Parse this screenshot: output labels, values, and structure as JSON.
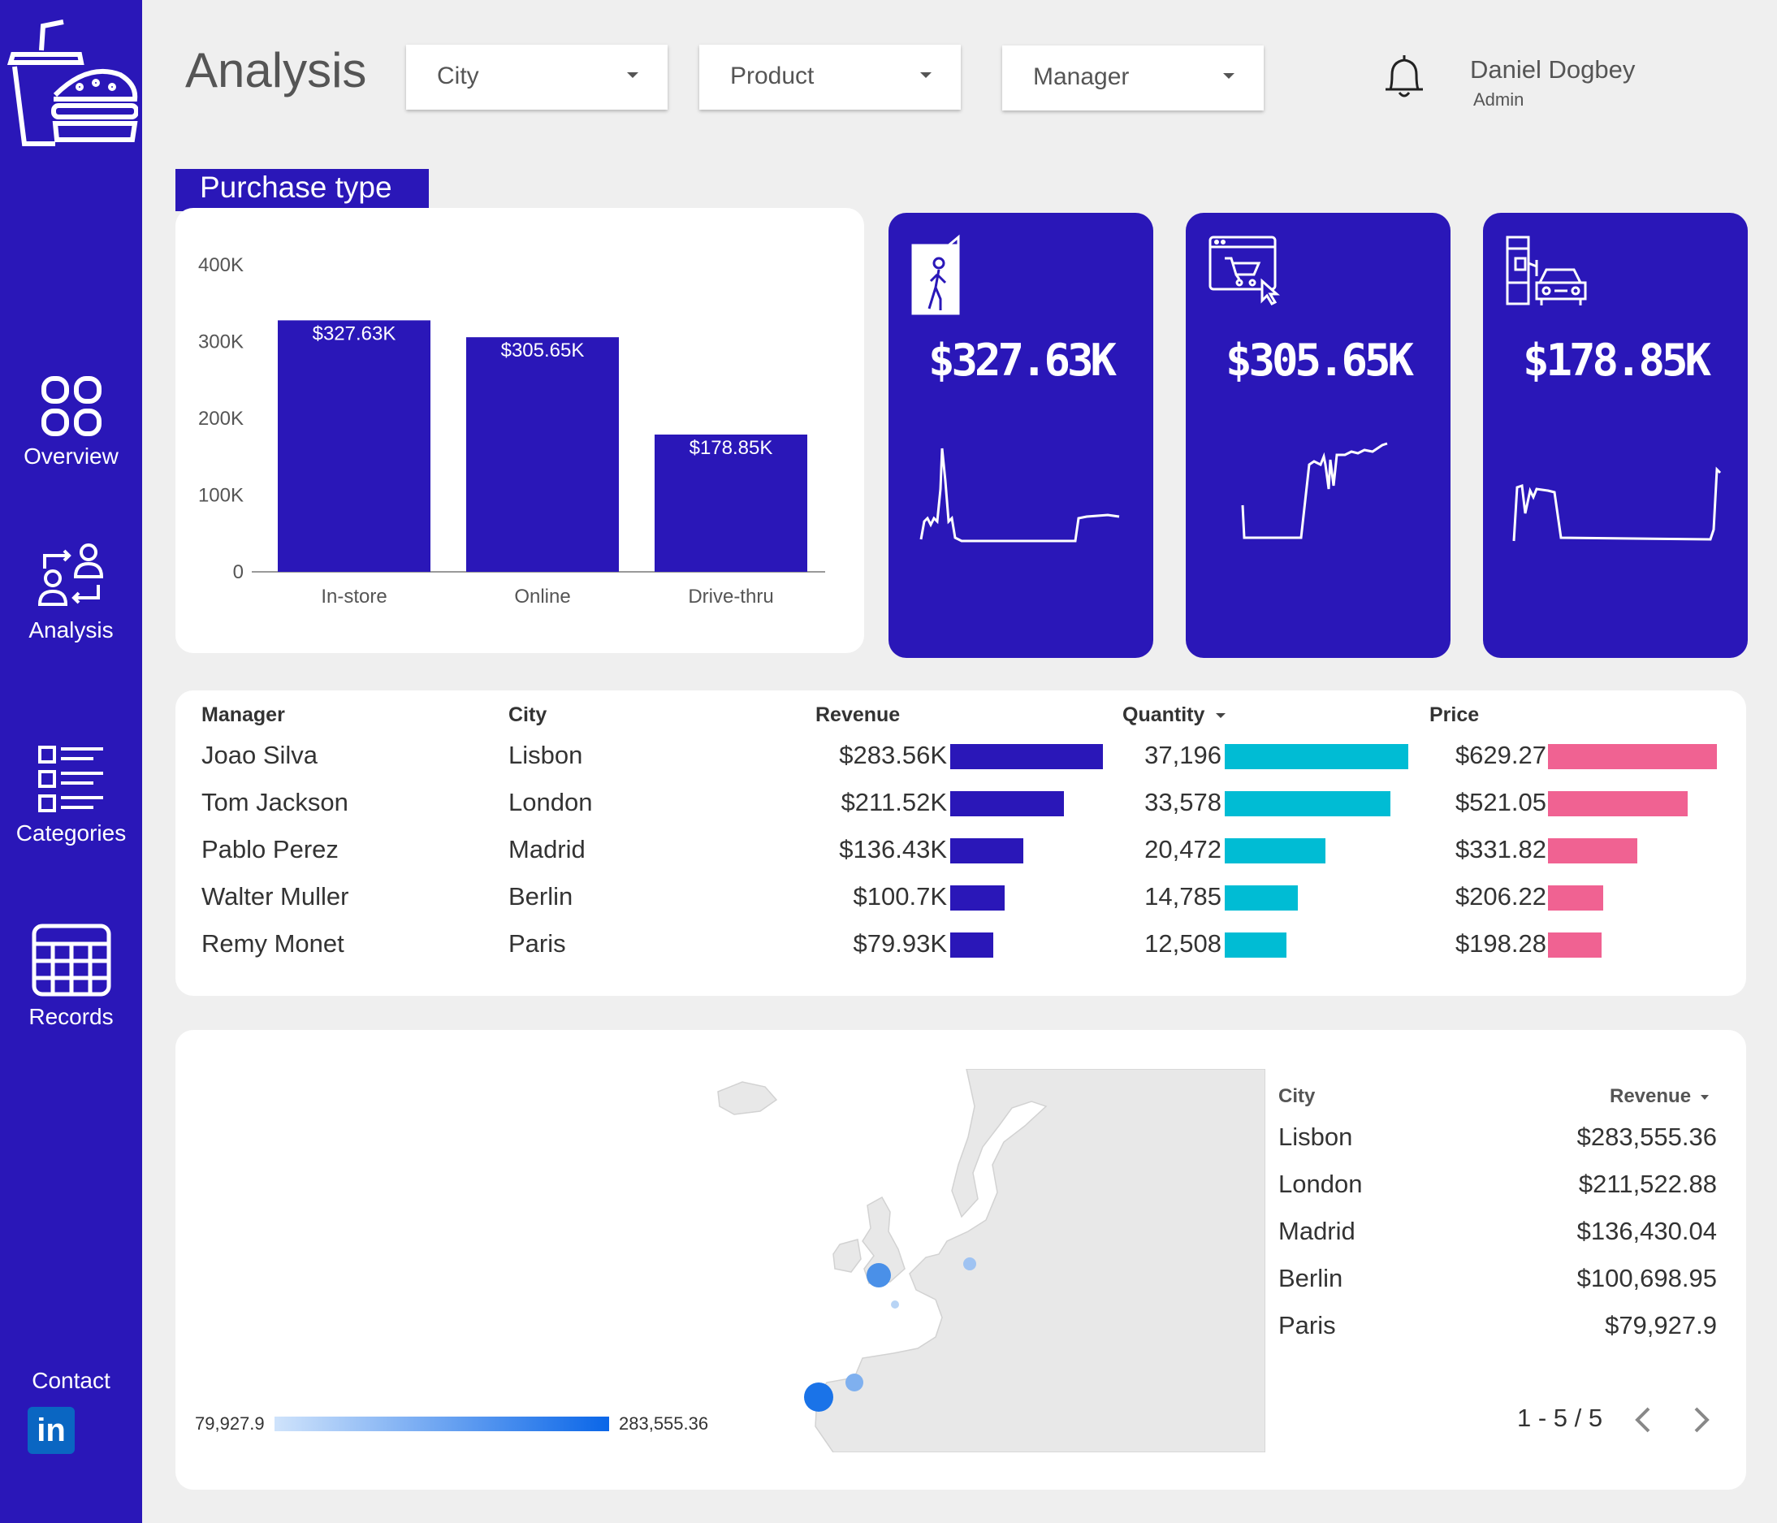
{
  "page_title": "Analysis",
  "filters": [
    {
      "label": "City"
    },
    {
      "label": "Product"
    },
    {
      "label": "Manager"
    }
  ],
  "user": {
    "name": "Daniel Dogbey",
    "role": "Admin"
  },
  "sidebar": {
    "items": [
      {
        "label": "Overview",
        "icon": "overview-icon"
      },
      {
        "label": "Analysis",
        "icon": "analysis-icon"
      },
      {
        "label": "Categories",
        "icon": "categories-icon"
      },
      {
        "label": "Records",
        "icon": "records-icon"
      }
    ],
    "contact_label": "Contact",
    "linkedin_label": "in"
  },
  "purchase_type": {
    "title": "Purchase type",
    "chart_data": {
      "type": "bar",
      "categories": [
        "In-store",
        "Online",
        "Drive-thru"
      ],
      "values": [
        327.63,
        305.65,
        178.85
      ],
      "data_labels": [
        "$327.63K",
        "$305.65K",
        "$178.85K"
      ],
      "yticks": [
        "0",
        "100K",
        "200K",
        "300K",
        "400K"
      ],
      "ylim": [
        0,
        400
      ],
      "grid": false
    }
  },
  "kpis": [
    {
      "value": "$327.63K",
      "icon": "door-person-icon"
    },
    {
      "value": "$305.65K",
      "icon": "online-cart-icon"
    },
    {
      "value": "$178.85K",
      "icon": "drive-thru-icon"
    }
  ],
  "manager_table": {
    "headers": {
      "manager": "Manager",
      "city": "City",
      "revenue": "Revenue",
      "quantity": "Quantity",
      "price": "Price"
    },
    "rows": [
      {
        "manager": "Joao Silva",
        "city": "Lisbon",
        "revenue": "$283.56K",
        "quantity": "37,196",
        "price": "$629.27",
        "rev_v": 283.56,
        "qty_v": 37196,
        "price_v": 629.27
      },
      {
        "manager": "Tom Jackson",
        "city": "London",
        "revenue": "$211.52K",
        "quantity": "33,578",
        "price": "$521.05",
        "rev_v": 211.52,
        "qty_v": 33578,
        "price_v": 521.05
      },
      {
        "manager": "Pablo Perez",
        "city": "Madrid",
        "revenue": "$136.43K",
        "quantity": "20,472",
        "price": "$331.82",
        "rev_v": 136.43,
        "qty_v": 20472,
        "price_v": 331.82
      },
      {
        "manager": "Walter Muller",
        "city": "Berlin",
        "revenue": "$100.7K",
        "quantity": "14,785",
        "price": "$206.22",
        "rev_v": 100.7,
        "qty_v": 14785,
        "price_v": 206.22
      },
      {
        "manager": "Remy Monet",
        "city": "Paris",
        "revenue": "$79.93K",
        "quantity": "12,508",
        "price": "$198.28",
        "rev_v": 79.93,
        "qty_v": 12508,
        "price_v": 198.28
      }
    ],
    "colors": {
      "revenue": "#2a17b8",
      "quantity": "#00bcd4",
      "price": "#f06292"
    }
  },
  "map": {
    "legend_min": "79,927.9",
    "legend_max": "283,555.36"
  },
  "city_table": {
    "headers": {
      "city": "City",
      "revenue": "Revenue"
    },
    "rows": [
      {
        "city": "Lisbon",
        "revenue": "$283,555.36"
      },
      {
        "city": "London",
        "revenue": "$211,522.88"
      },
      {
        "city": "Madrid",
        "revenue": "$136,430.04"
      },
      {
        "city": "Berlin",
        "revenue": "$100,698.95"
      },
      {
        "city": "Paris",
        "revenue": "$79,927.9"
      }
    ],
    "pagination": "1 - 5 / 5"
  }
}
